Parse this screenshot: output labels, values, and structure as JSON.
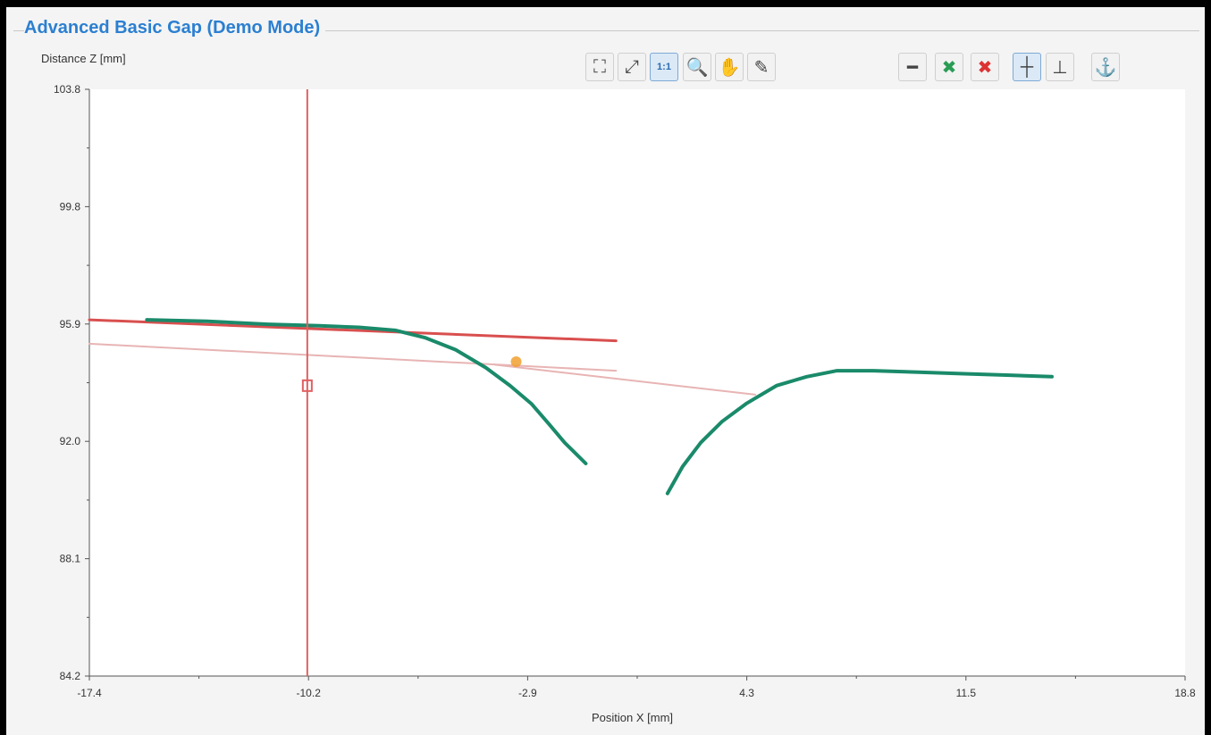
{
  "panel": {
    "title": "Advanced Basic Gap (Demo Mode)",
    "title_color": "#2b7fd1"
  },
  "toolbar": {
    "left_group": [
      {
        "name": "fit-all-icon",
        "glyph": "⛶"
      },
      {
        "name": "auto-scale-icon",
        "glyph": "⤢"
      },
      {
        "name": "one-to-one-button",
        "glyph": "1:1"
      },
      {
        "name": "zoom-icon",
        "glyph": "🔍"
      },
      {
        "name": "pan-hand-icon",
        "glyph": "✋"
      },
      {
        "name": "probe-pen-icon",
        "glyph": "✎"
      }
    ],
    "right_group": [
      {
        "name": "line-fit-icon",
        "glyph": "━"
      },
      {
        "name": "add-marker-icon",
        "glyph": "✖"
      },
      {
        "name": "delete-marker-icon",
        "glyph": "✖"
      },
      {
        "name": "vertical-cursor-icon",
        "glyph": "┼"
      },
      {
        "name": "step-icon",
        "glyph": "⊥"
      },
      {
        "name": "anchor-icon",
        "glyph": "⚓"
      }
    ]
  },
  "chart_data": {
    "type": "line",
    "title": "",
    "xlabel": "Position X [mm]",
    "ylabel": "Distance Z [mm]",
    "xlim": [
      -17.4,
      18.8
    ],
    "ylim": [
      84.2,
      103.8
    ],
    "x_ticks": [
      "-17.4",
      "-10.2",
      "-2.9",
      "4.3",
      "11.5",
      "18.8"
    ],
    "y_ticks": [
      "84.2",
      "88.1",
      "92.0",
      "95.9",
      "99.8",
      "103.8"
    ],
    "grid": false,
    "colors": {
      "profile": "#1a8a6a",
      "reference_line": "#d94f4f",
      "fit_line": "#e8b4b4",
      "cursor": "#e06060",
      "marker": "#f0a030"
    },
    "series": [
      {
        "role": "profile-left",
        "x": [
          -15.5,
          -13.5,
          -11.5,
          -9.8,
          -8.5,
          -7.3,
          -6.3,
          -5.3,
          -4.3,
          -3.5,
          -2.8,
          -2.2,
          -1.7,
          -1.3,
          -1.0
        ],
        "y": [
          96.1,
          96.05,
          95.95,
          95.9,
          95.85,
          95.75,
          95.5,
          95.1,
          94.5,
          93.9,
          93.3,
          92.6,
          92.0,
          91.6,
          91.3
        ]
      },
      {
        "role": "profile-right",
        "x": [
          1.7,
          2.2,
          2.8,
          3.5,
          4.3,
          5.3,
          6.3,
          7.3,
          8.5,
          10.0,
          11.5,
          13.0,
          14.4
        ],
        "y": [
          90.3,
          91.2,
          92.0,
          92.7,
          93.3,
          93.9,
          94.2,
          94.4,
          94.4,
          94.35,
          94.3,
          94.25,
          94.2
        ]
      },
      {
        "role": "reference-line",
        "x": [
          -17.4,
          0.0
        ],
        "y": [
          96.1,
          95.4
        ]
      },
      {
        "role": "fit-line-upper",
        "x": [
          -17.4,
          0.0
        ],
        "y": [
          95.3,
          94.4
        ]
      },
      {
        "role": "fit-line-lower",
        "x": [
          -4.0,
          4.6
        ],
        "y": [
          94.6,
          93.6
        ]
      }
    ],
    "cursor_x": -10.2,
    "cursor_marker_y": 93.9,
    "intersection_marker": {
      "x": -3.3,
      "y": 94.7
    }
  }
}
